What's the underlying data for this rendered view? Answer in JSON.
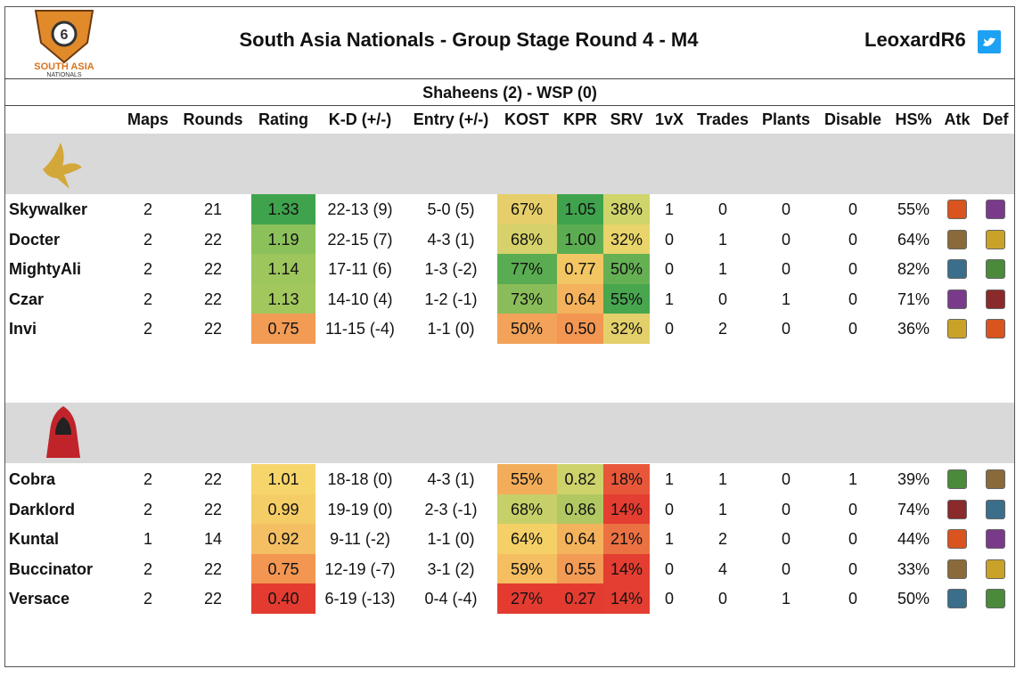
{
  "header": {
    "title": "South Asia Nationals - Group Stage Round 4 - M4",
    "author": "LeoxardR6",
    "logo_text": [
      "SOUTH ASIA",
      "NATIONALS"
    ]
  },
  "match": "Shaheens (2) - WSP (0)",
  "table": {
    "columns": [
      "Maps",
      "Rounds",
      "Rating",
      "K-D (+/-)",
      "Entry (+/-)",
      "KOST",
      "KPR",
      "SRV",
      "1vX",
      "Trades",
      "Plants",
      "Disable",
      "HS%",
      "Atk",
      "Def"
    ],
    "teams": [
      {
        "players": [
          {
            "cells": [
              "Skywalker",
              "2",
              "21",
              "1.33",
              "22-13 (9)",
              "5-0 (5)",
              "67%",
              "1.05",
              "38%",
              "1",
              "0",
              "0",
              "0",
              "55%"
            ],
            "heat": [
              "#3fa34d",
              "#e6cf6a",
              "#3fa34d",
              "#cfd46b"
            ]
          },
          {
            "cells": [
              "Docter",
              "2",
              "22",
              "1.19",
              "22-15 (7)",
              "4-3 (1)",
              "68%",
              "1.00",
              "32%",
              "0",
              "1",
              "0",
              "0",
              "64%"
            ],
            "heat": [
              "#8cc05a",
              "#d6d16a",
              "#5cad52",
              "#e8d46a"
            ]
          },
          {
            "cells": [
              "MightyAli",
              "2",
              "22",
              "1.14",
              "17-11 (6)",
              "1-3 (-2)",
              "77%",
              "0.77",
              "50%",
              "0",
              "1",
              "0",
              "0",
              "82%"
            ],
            "heat": [
              "#9dc65c",
              "#5aac52",
              "#f2c663",
              "#66b054"
            ]
          },
          {
            "cells": [
              "Czar",
              "2",
              "22",
              "1.13",
              "14-10 (4)",
              "1-2 (-1)",
              "73%",
              "0.64",
              "55%",
              "1",
              "0",
              "1",
              "0",
              "71%"
            ],
            "heat": [
              "#a2c75d",
              "#8abd59",
              "#f4b25c",
              "#48a64f"
            ]
          },
          {
            "cells": [
              "Invi",
              "2",
              "22",
              "0.75",
              "11-15 (-4)",
              "1-1 (0)",
              "50%",
              "0.50",
              "32%",
              "0",
              "2",
              "0",
              "0",
              "36%"
            ],
            "heat": [
              "#f29b55",
              "#f2a359",
              "#f29652",
              "#e3d06a"
            ]
          }
        ]
      },
      {
        "players": [
          {
            "cells": [
              "Cobra",
              "2",
              "22",
              "1.01",
              "18-18 (0)",
              "4-3 (1)",
              "55%",
              "0.82",
              "18%",
              "1",
              "1",
              "0",
              "1",
              "39%"
            ],
            "heat": [
              "#f6d56a",
              "#f3ad5a",
              "#cdd26b",
              "#e8573a"
            ]
          },
          {
            "cells": [
              "Darklord",
              "2",
              "22",
              "0.99",
              "19-19 (0)",
              "2-3 (-1)",
              "68%",
              "0.86",
              "14%",
              "0",
              "1",
              "0",
              "0",
              "74%"
            ],
            "heat": [
              "#f5cd66",
              "#c7cf69",
              "#b1c862",
              "#e33e31"
            ]
          },
          {
            "cells": [
              "Kuntal",
              "1",
              "14",
              "0.92",
              "9-11 (-2)",
              "1-1 (0)",
              "64%",
              "0.64",
              "21%",
              "1",
              "2",
              "0",
              "0",
              "44%"
            ],
            "heat": [
              "#f4bf62",
              "#f5d066",
              "#f4b25c",
              "#ec7142"
            ]
          },
          {
            "cells": [
              "Buccinator",
              "2",
              "22",
              "0.75",
              "12-19 (-7)",
              "3-1 (2)",
              "59%",
              "0.55",
              "14%",
              "0",
              "4",
              "0",
              "0",
              "33%"
            ],
            "heat": [
              "#f29652",
              "#f4be61",
              "#f39a55",
              "#e33e31"
            ]
          },
          {
            "cells": [
              "Versace",
              "2",
              "22",
              "0.40",
              "6-19 (-13)",
              "0-4 (-4)",
              "27%",
              "0.27",
              "14%",
              "0",
              "0",
              "1",
              "0",
              "50%"
            ],
            "heat": [
              "#e33b30",
              "#e33b30",
              "#e33b30",
              "#e33e31"
            ]
          }
        ]
      }
    ]
  }
}
